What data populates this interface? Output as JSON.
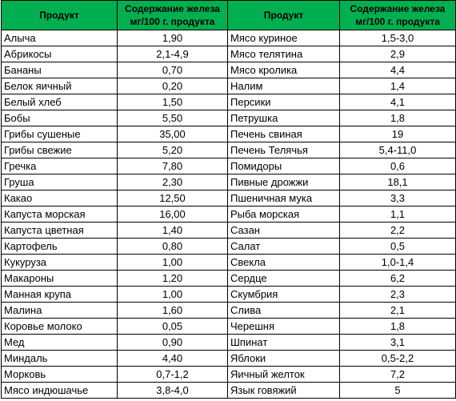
{
  "table": {
    "headers": {
      "product_left": "Продукт",
      "iron_left": [
        "Содержание железа",
        "мг/100 г. продукта"
      ],
      "product_right": "Продукт",
      "iron_right": [
        "Содержание железа",
        "мг/100 г. продукта"
      ]
    },
    "rows": [
      {
        "left_name": "Алыча",
        "left_value": "1,90",
        "right_name": "Мясо куриное",
        "right_value": "1,5-3,0"
      },
      {
        "left_name": "Абрикосы",
        "left_value": "2,1-4,9",
        "right_name": "Мясо телятина",
        "right_value": "2,9"
      },
      {
        "left_name": "Бананы",
        "left_value": "0,70",
        "right_name": "Мясо кролика",
        "right_value": "4,4"
      },
      {
        "left_name": "Белок яичный",
        "left_value": "0,20",
        "right_name": "Налим",
        "right_value": "1,4"
      },
      {
        "left_name": "Белый хлеб",
        "left_value": "1,50",
        "right_name": "Персики",
        "right_value": "4,1"
      },
      {
        "left_name": "Бобы",
        "left_value": "5,50",
        "right_name": "Петрушка",
        "right_value": "1,8"
      },
      {
        "left_name": "Грибы сушеные",
        "left_value": "35,00",
        "right_name": "Печень свиная",
        "right_value": "19"
      },
      {
        "left_name": "Грибы свежие",
        "left_value": "5,20",
        "right_name": "Печень Телячья",
        "right_value": "5,4-11,0"
      },
      {
        "left_name": "Гречка",
        "left_value": "7,80",
        "right_name": "Помидоры",
        "right_value": "0,6"
      },
      {
        "left_name": "Груша",
        "left_value": "2,30",
        "right_name": "Пивные дрожжи",
        "right_value": "18,1"
      },
      {
        "left_name": "Какао",
        "left_value": "12,50",
        "right_name": "Пшеничная мука",
        "right_value": "3,3"
      },
      {
        "left_name": "Капуста морская",
        "left_value": "16,00",
        "right_name": "Рыба морская",
        "right_value": "1,1"
      },
      {
        "left_name": "Капуста цветная",
        "left_value": "1,40",
        "right_name": "Сазан",
        "right_value": "2,2"
      },
      {
        "left_name": "Картофель",
        "left_value": "0,80",
        "right_name": "Салат",
        "right_value": "0,5"
      },
      {
        "left_name": "Кукуруза",
        "left_value": "1,00",
        "right_name": "Свекла",
        "right_value": "1,0-1,4"
      },
      {
        "left_name": "Макароны",
        "left_value": "1,20",
        "right_name": "Сердце",
        "right_value": "6,2"
      },
      {
        "left_name": "Манная крупа",
        "left_value": "1,00",
        "right_name": "Скумбрия",
        "right_value": "2,3"
      },
      {
        "left_name": "Малина",
        "left_value": "1,60",
        "right_name": "Слива",
        "right_value": "2,1"
      },
      {
        "left_name": "Коровье молоко",
        "left_value": "0,05",
        "right_name": "Черешня",
        "right_value": "1,8"
      },
      {
        "left_name": "Мед",
        "left_value": "0,90",
        "right_name": "Шпинат",
        "right_value": "3,1"
      },
      {
        "left_name": "Миндаль",
        "left_value": "4,40",
        "right_name": "Яблоки",
        "right_value": "0,5-2,2"
      },
      {
        "left_name": "Морковь",
        "left_value": "0,7-1,2",
        "right_name": "Яичный желток",
        "right_value": "7,2"
      },
      {
        "left_name": "Мясо индюшачье",
        "left_value": "3,8-4,0",
        "right_name": "Язык говяжий",
        "right_value": "5"
      }
    ]
  },
  "colors": {
    "header_background": "#00b050",
    "grid_line": "#000000"
  }
}
